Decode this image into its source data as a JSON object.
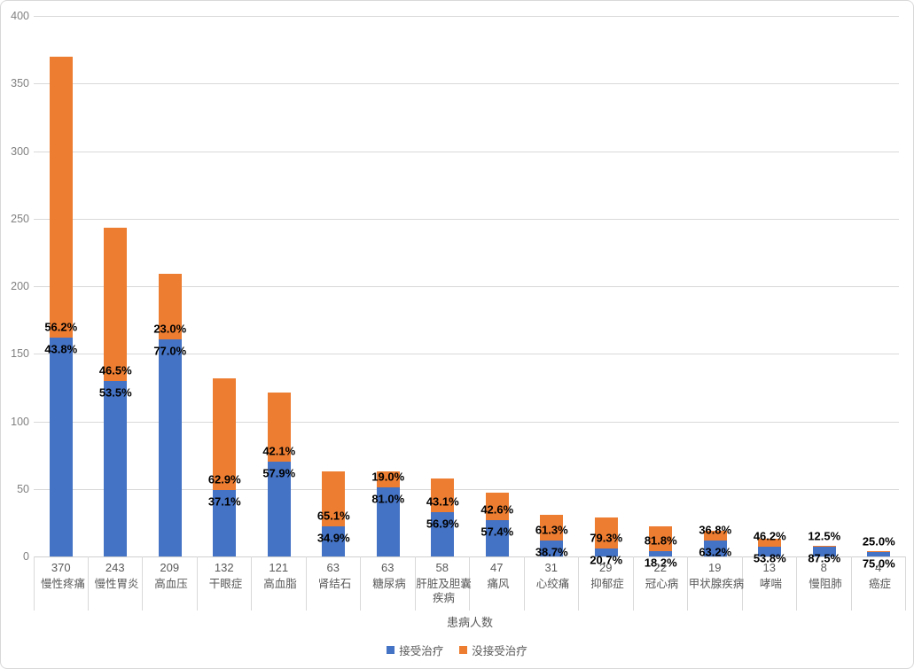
{
  "chart_data": {
    "type": "bar",
    "stacked": true,
    "title": "",
    "xlabel": "患病人数",
    "ylabel": "",
    "ylim": [
      0,
      400
    ],
    "ytick_interval": 50,
    "grid": true,
    "legend_position": "bottom",
    "categories": [
      "慢性疼痛",
      "慢性胃炎",
      "高血压",
      "干眼症",
      "高血脂",
      "肾结石",
      "糖尿病",
      "肝脏及胆囊疾病",
      "痛风",
      "心绞痛",
      "抑郁症",
      "冠心病",
      "甲状腺疾病",
      "哮喘",
      "慢阻肺",
      "癌症"
    ],
    "totals": [
      370,
      243,
      209,
      132,
      121,
      63,
      63,
      58,
      47,
      31,
      29,
      22,
      19,
      13,
      8,
      4
    ],
    "series": [
      {
        "name": "接受治疗",
        "color": "#4472C4",
        "percentages": [
          43.8,
          53.5,
          77.0,
          37.1,
          57.9,
          34.9,
          81.0,
          56.9,
          57.4,
          38.7,
          20.7,
          18.2,
          63.2,
          53.8,
          87.5,
          75.0
        ],
        "values": [
          162,
          130,
          161,
          49,
          70,
          22,
          51,
          33,
          27,
          12,
          6,
          4,
          12,
          7,
          7,
          3
        ]
      },
      {
        "name": "没接受治疗",
        "color": "#ED7D31",
        "percentages": [
          56.2,
          46.5,
          23.0,
          62.9,
          42.1,
          65.1,
          19.0,
          43.1,
          42.6,
          61.3,
          79.3,
          81.8,
          36.8,
          46.2,
          12.5,
          25.0
        ],
        "values": [
          208,
          113,
          48,
          83,
          51,
          41,
          12,
          25,
          20,
          19,
          23,
          18,
          7,
          6,
          1,
          1
        ]
      }
    ]
  },
  "axis": {
    "y_ticks": [
      "0",
      "50",
      "100",
      "150",
      "200",
      "250",
      "300",
      "350",
      "400"
    ]
  },
  "colors": {
    "treated": "#4472C4",
    "untreated": "#ED7D31",
    "gridline": "#D9D9D9",
    "axis_text": "#808080",
    "category_text": "#595959",
    "percent_label_text": "#000000",
    "border": "#D8D8D8"
  }
}
